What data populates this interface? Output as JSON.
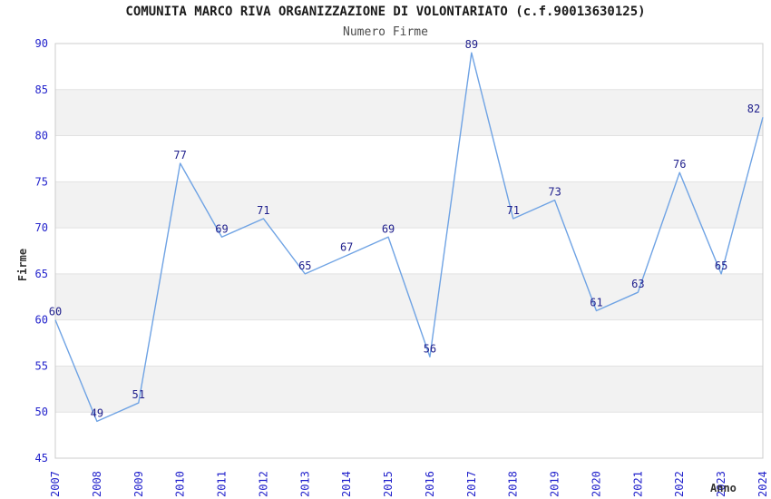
{
  "header": {
    "title": "COMUNITA MARCO RIVA ORGANIZZAZIONE DI VOLONTARIATO (c.f.90013630125)",
    "subtitle": "Numero Firme"
  },
  "chart_data": {
    "type": "line",
    "title": "COMUNITA MARCO RIVA ORGANIZZAZIONE DI VOLONTARIATO (c.f.90013630125)",
    "subtitle": "Numero Firme",
    "xlabel": "Anno",
    "ylabel": "Firme",
    "categories": [
      "2007",
      "2008",
      "2009",
      "2010",
      "2011",
      "2012",
      "2013",
      "2014",
      "2015",
      "2016",
      "2017",
      "2018",
      "2019",
      "2020",
      "2021",
      "2022",
      "2023",
      "2024"
    ],
    "values": [
      60,
      49,
      51,
      77,
      69,
      71,
      65,
      67,
      69,
      56,
      89,
      71,
      73,
      61,
      63,
      76,
      65,
      82
    ],
    "ylim": [
      45,
      90
    ],
    "ytick_step": 5,
    "yticks": [
      45,
      50,
      55,
      60,
      65,
      70,
      75,
      80,
      85,
      90
    ],
    "grid": "horizontal-gridlines-with-alternating-bands",
    "legend": "none",
    "data_labels_shown": true,
    "colors": {
      "line": "#6fa3e4",
      "tick_label": "#2323cc",
      "data_label": "#1f1f8c",
      "gridline": "#e2e2e2",
      "band_fill": "#f2f2f2",
      "plot_border": "#cccccc",
      "title_text": "#1a1a1a",
      "subtitle_text": "#4d4d4d",
      "axis_title_text": "#333333",
      "background": "#ffffff"
    }
  }
}
